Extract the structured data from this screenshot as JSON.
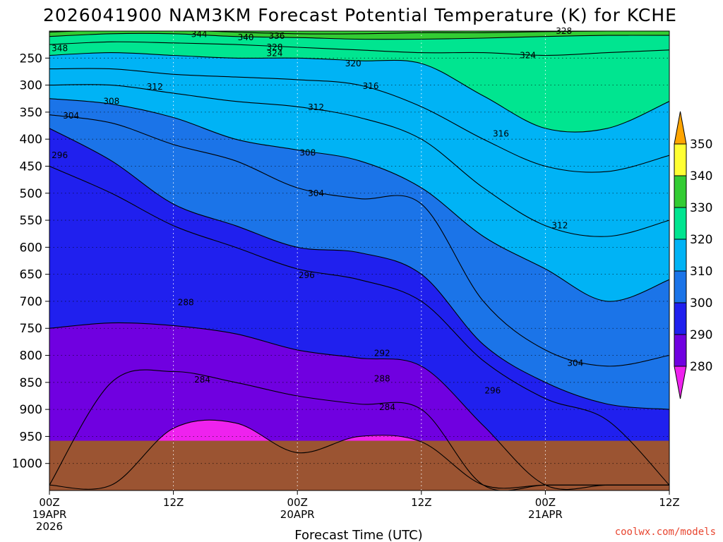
{
  "chart_data": {
    "type": "heatmap",
    "title": "2026041900 NAM3KM Forecast Potential Temperature (K) for KCHE",
    "xlabel": "Forecast Time (UTC)",
    "ylabel": "",
    "credit": "coolwx.com/models",
    "y_ticks": [
      "250",
      "300",
      "350",
      "400",
      "450",
      "500",
      "550",
      "600",
      "650",
      "700",
      "750",
      "800",
      "850",
      "900",
      "950",
      "1000"
    ],
    "y_tick_values": [
      250,
      300,
      350,
      400,
      450,
      500,
      550,
      600,
      650,
      700,
      750,
      800,
      850,
      900,
      950,
      1000
    ],
    "ylim": [
      200,
      1050
    ],
    "x_range_hours": [
      0,
      60
    ],
    "x_ticks": [
      {
        "hour": 0,
        "line1": "00Z",
        "line2": "19APR",
        "line3": "2026"
      },
      {
        "hour": 12,
        "line1": "12Z",
        "line2": "",
        "line3": ""
      },
      {
        "hour": 24,
        "line1": "00Z",
        "line2": "20APR",
        "line3": ""
      },
      {
        "hour": 36,
        "line1": "12Z",
        "line2": "",
        "line3": ""
      },
      {
        "hour": 48,
        "line1": "00Z",
        "line2": "21APR",
        "line3": ""
      },
      {
        "hour": 60,
        "line1": "12Z",
        "line2": "",
        "line3": ""
      }
    ],
    "legend_levels": [
      "280",
      "290",
      "300",
      "310",
      "320",
      "330",
      "340",
      "350"
    ],
    "legend_position": "right",
    "colors": {
      "lt280": "#ee22ee",
      "c280": "#7000e0",
      "c290": "#2020ee",
      "c300": "#1b74e8",
      "c310": "#00b3f5",
      "c320": "#00e590",
      "c330": "#33cc33",
      "c340": "#ffff33",
      "gt350": "#ffa500",
      "ground": "#9b5432"
    },
    "hours": [
      0,
      6,
      12,
      18,
      24,
      30,
      36,
      42,
      48,
      54,
      60
    ],
    "isotherms": [
      {
        "theta": 284,
        "pressures": [
          1040,
          1040,
          935,
          925,
          980,
          950,
          960,
          1040,
          1040,
          1040,
          1040
        ]
      },
      {
        "theta": 288,
        "pressures": [
          1040,
          850,
          830,
          850,
          875,
          890,
          900,
          1040,
          1040,
          1040,
          1040
        ]
      },
      {
        "theta": 292,
        "pressures": [
          750,
          740,
          745,
          760,
          790,
          805,
          820,
          930,
          1040,
          1040,
          1040
        ]
      },
      {
        "theta": 296,
        "pressures": [
          450,
          500,
          560,
          600,
          640,
          660,
          700,
          810,
          880,
          920,
          1040
        ]
      },
      {
        "theta": 300,
        "pressures": [
          380,
          440,
          520,
          560,
          600,
          610,
          650,
          780,
          850,
          890,
          900
        ]
      },
      {
        "theta": 304,
        "pressures": [
          355,
          370,
          410,
          440,
          490,
          510,
          520,
          700,
          790,
          820,
          800
        ]
      },
      {
        "theta": 308,
        "pressures": [
          325,
          335,
          360,
          400,
          420,
          440,
          490,
          580,
          640,
          700,
          660
        ]
      },
      {
        "theta": 312,
        "pressures": [
          300,
          300,
          315,
          330,
          340,
          360,
          400,
          490,
          560,
          580,
          550
        ]
      },
      {
        "theta": 316,
        "pressures": [
          270,
          270,
          280,
          285,
          290,
          300,
          340,
          400,
          450,
          460,
          430
        ]
      },
      {
        "theta": 320,
        "pressures": [
          245,
          240,
          245,
          250,
          250,
          255,
          260,
          320,
          380,
          380,
          330
        ]
      },
      {
        "theta": 324,
        "pressures": [
          225,
          220,
          222,
          225,
          230,
          235,
          240,
          240,
          245,
          240,
          235
        ]
      },
      {
        "theta": 328,
        "pressures": [
          210,
          205,
          205,
          210,
          212,
          215,
          215,
          213,
          210,
          208,
          208
        ]
      },
      {
        "theta": 332,
        "pressures": [
          202,
          198,
          198,
          202,
          205,
          205,
          203,
          203,
          201,
          200,
          200
        ]
      },
      {
        "theta": 336,
        "pressures": [
          195,
          192,
          190,
          195,
          198,
          197,
          196,
          195,
          193,
          192,
          192
        ]
      },
      {
        "theta": 340,
        "pressures": [
          190,
          185,
          184,
          188,
          190,
          190,
          188,
          187,
          186,
          185,
          185
        ]
      },
      {
        "theta": 344,
        "pressures": [
          185,
          180,
          179,
          183,
          185,
          185,
          183,
          182,
          181,
          180,
          180
        ]
      },
      {
        "theta": 348,
        "pressures": [
          180,
          176,
          175,
          178,
          180,
          180,
          178,
          177,
          176,
          175,
          175
        ]
      }
    ],
    "contour_labels": [
      {
        "text": "344",
        "hour": 14.5,
        "p": 206
      },
      {
        "text": "340",
        "hour": 19.0,
        "p": 212
      },
      {
        "text": "336",
        "hour": 22.0,
        "p": 209
      },
      {
        "text": "328",
        "hour": 21.8,
        "p": 230
      },
      {
        "text": "324",
        "hour": 21.8,
        "p": 241
      },
      {
        "text": "328",
        "hour": 49.8,
        "p": 200
      },
      {
        "text": "348",
        "hour": 1.0,
        "p": 232
      },
      {
        "text": "320",
        "hour": 29.4,
        "p": 260
      },
      {
        "text": "324",
        "hour": 46.3,
        "p": 245
      },
      {
        "text": "312",
        "hour": 10.2,
        "p": 303
      },
      {
        "text": "316",
        "hour": 31.1,
        "p": 302
      },
      {
        "text": "308",
        "hour": 6.0,
        "p": 330
      },
      {
        "text": "312",
        "hour": 25.8,
        "p": 341
      },
      {
        "text": "304",
        "hour": 2.1,
        "p": 357
      },
      {
        "text": "316",
        "hour": 43.7,
        "p": 390
      },
      {
        "text": "296",
        "hour": 1.0,
        "p": 430
      },
      {
        "text": "308",
        "hour": 25.0,
        "p": 425
      },
      {
        "text": "304",
        "hour": 25.8,
        "p": 500
      },
      {
        "text": "312",
        "hour": 49.4,
        "p": 560
      },
      {
        "text": "296",
        "hour": 24.9,
        "p": 652
      },
      {
        "text": "288",
        "hour": 13.2,
        "p": 702
      },
      {
        "text": "304",
        "hour": 50.9,
        "p": 814
      },
      {
        "text": "292",
        "hour": 32.2,
        "p": 796
      },
      {
        "text": "288",
        "hour": 32.2,
        "p": 843
      },
      {
        "text": "296",
        "hour": 42.9,
        "p": 865
      },
      {
        "text": "284",
        "hour": 14.8,
        "p": 845
      },
      {
        "text": "284",
        "hour": 32.7,
        "p": 896
      }
    ]
  }
}
